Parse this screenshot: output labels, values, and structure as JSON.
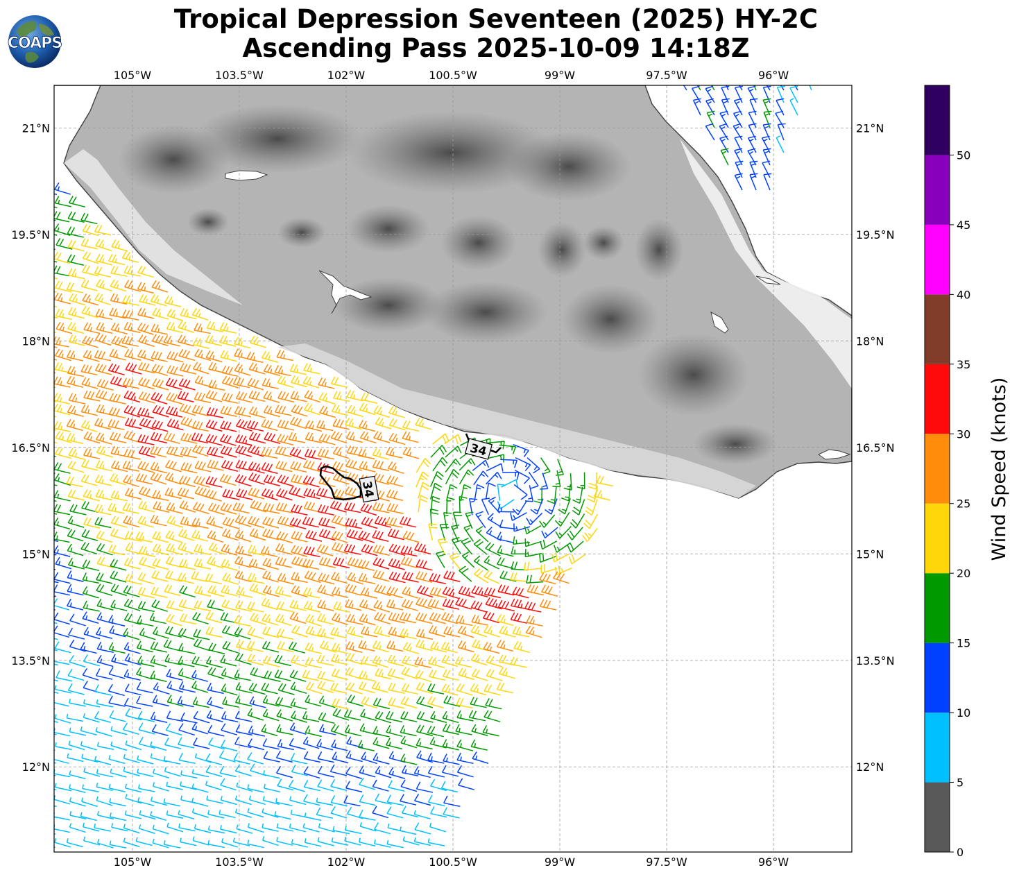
{
  "header": {
    "logo_text": "COAPS",
    "title_line1": "Tropical Depression Seventeen (2025) HY-2C",
    "title_line2": "Ascending Pass 2025-10-09 14:18Z"
  },
  "map": {
    "lon_range": [
      -106.1,
      -94.9
    ],
    "lat_range": [
      10.8,
      21.6
    ],
    "lon_ticks": [
      {
        "value": -105.0,
        "label": "105°W"
      },
      {
        "value": -103.5,
        "label": "103.5°W"
      },
      {
        "value": -102.0,
        "label": "102°W"
      },
      {
        "value": -100.5,
        "label": "100.5°W"
      },
      {
        "value": -99.0,
        "label": "99°W"
      },
      {
        "value": -97.5,
        "label": "97.5°W"
      },
      {
        "value": -96.0,
        "label": "96°W"
      }
    ],
    "lat_ticks": [
      {
        "value": 21.0,
        "label": "21°N"
      },
      {
        "value": 19.5,
        "label": "19.5°N"
      },
      {
        "value": 18.0,
        "label": "18°N"
      },
      {
        "value": 16.5,
        "label": "16.5°N"
      },
      {
        "value": 15.0,
        "label": "15°N"
      },
      {
        "value": 13.5,
        "label": "13.5°N"
      },
      {
        "value": 12.0,
        "label": "12°N"
      }
    ],
    "grid": true,
    "contour_label": "34",
    "contour_level_knots": 34
  },
  "colorbar": {
    "label": "Wind Speed (knots)",
    "bins": [
      {
        "min": 0,
        "max": 5,
        "color": "#595959"
      },
      {
        "min": 5,
        "max": 10,
        "color": "#00bfff"
      },
      {
        "min": 10,
        "max": 15,
        "color": "#0040ff"
      },
      {
        "min": 15,
        "max": 20,
        "color": "#009900"
      },
      {
        "min": 20,
        "max": 25,
        "color": "#ffd60a"
      },
      {
        "min": 25,
        "max": 30,
        "color": "#ff8c0a"
      },
      {
        "min": 30,
        "max": 35,
        "color": "#ff0a0a"
      },
      {
        "min": 35,
        "max": 40,
        "color": "#803c28"
      },
      {
        "min": 40,
        "max": 45,
        "color": "#ff00ff"
      },
      {
        "min": 45,
        "max": 50,
        "color": "#8800bb"
      },
      {
        "min": 50,
        "max": 55,
        "color": "#300060"
      }
    ],
    "ticks": [
      "0",
      "5",
      "10",
      "15",
      "20",
      "25",
      "30",
      "35",
      "40",
      "45",
      "50"
    ]
  }
}
